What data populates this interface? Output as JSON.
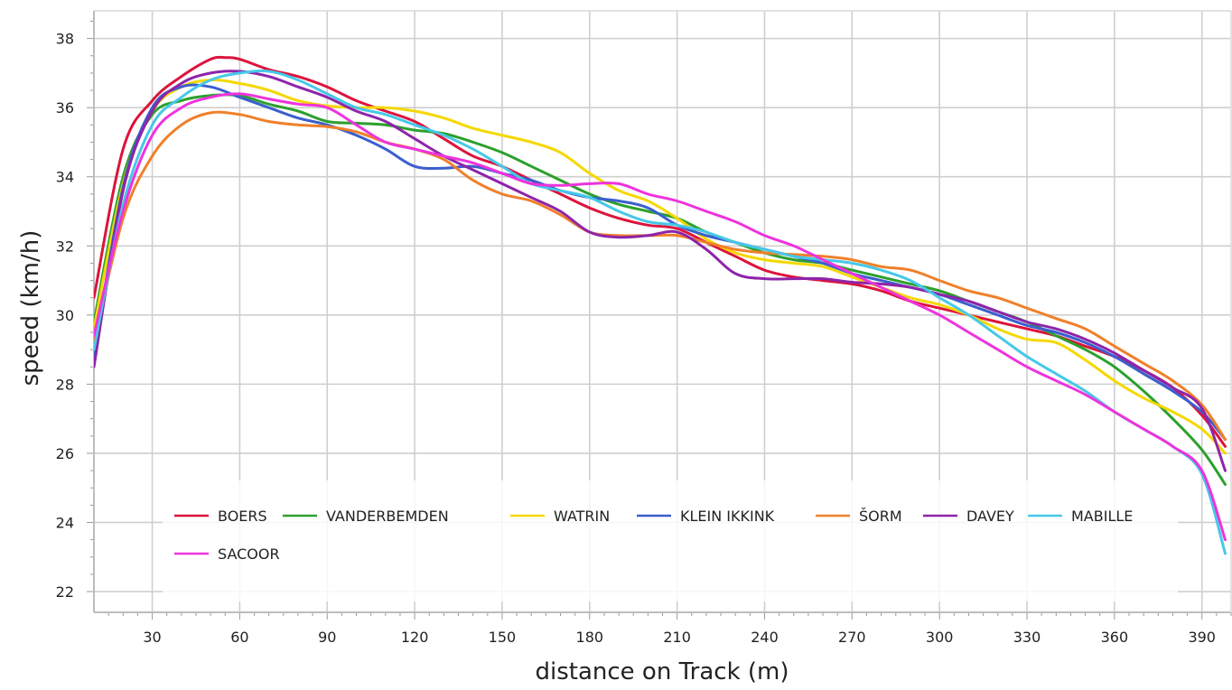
{
  "chart_data": {
    "type": "line",
    "title": "",
    "xlabel": "distance on Track (m)",
    "ylabel": "speed (km/h)",
    "xlim": [
      10,
      400
    ],
    "ylim": [
      21.4,
      38.8
    ],
    "x_ticks": [
      30,
      60,
      90,
      120,
      150,
      180,
      210,
      240,
      270,
      300,
      330,
      360,
      390
    ],
    "y_ticks": [
      22,
      24,
      26,
      28,
      30,
      32,
      34,
      36,
      38
    ],
    "grid": true,
    "legend_position": "bottom",
    "series": [
      {
        "name": "BOERS",
        "color": "#dc143c",
        "x": [
          10,
          20,
          30,
          40,
          50,
          55,
          60,
          70,
          80,
          90,
          100,
          110,
          120,
          130,
          140,
          150,
          160,
          170,
          180,
          190,
          200,
          210,
          220,
          230,
          240,
          250,
          260,
          270,
          280,
          290,
          300,
          310,
          320,
          330,
          340,
          350,
          360,
          370,
          380,
          390,
          398
        ],
        "values": [
          30.5,
          34.8,
          36.2,
          36.9,
          37.4,
          37.45,
          37.4,
          37.1,
          36.9,
          36.6,
          36.2,
          35.9,
          35.6,
          35.1,
          34.6,
          34.3,
          33.9,
          33.5,
          33.1,
          32.8,
          32.6,
          32.5,
          32.1,
          31.7,
          31.3,
          31.1,
          31.0,
          30.9,
          30.7,
          30.4,
          30.2,
          30.0,
          29.8,
          29.6,
          29.4,
          29.1,
          28.8,
          28.4,
          27.9,
          27.1,
          26.2
        ]
      },
      {
        "name": "VANDERBEMDEN",
        "color": "#2ca02c",
        "x": [
          10,
          20,
          30,
          40,
          50,
          60,
          70,
          80,
          90,
          100,
          110,
          120,
          130,
          140,
          150,
          160,
          170,
          180,
          190,
          200,
          210,
          220,
          230,
          240,
          250,
          260,
          270,
          280,
          290,
          300,
          310,
          320,
          330,
          340,
          350,
          360,
          370,
          380,
          390,
          398
        ],
        "values": [
          29.8,
          34.0,
          35.8,
          36.2,
          36.35,
          36.35,
          36.1,
          35.9,
          35.6,
          35.55,
          35.5,
          35.35,
          35.25,
          35.0,
          34.7,
          34.3,
          33.9,
          33.5,
          33.2,
          33.0,
          32.8,
          32.4,
          32.1,
          31.8,
          31.6,
          31.5,
          31.3,
          31.1,
          30.9,
          30.7,
          30.4,
          30.1,
          29.8,
          29.4,
          29.0,
          28.5,
          27.8,
          27.0,
          26.1,
          25.1
        ]
      },
      {
        "name": "WATRIN",
        "color": "#f5d800",
        "x": [
          10,
          20,
          30,
          40,
          50,
          60,
          70,
          80,
          90,
          100,
          110,
          120,
          130,
          140,
          150,
          160,
          170,
          180,
          190,
          200,
          210,
          220,
          230,
          240,
          250,
          260,
          270,
          280,
          290,
          300,
          310,
          320,
          330,
          340,
          350,
          360,
          370,
          380,
          390,
          398
        ],
        "values": [
          29.6,
          33.8,
          35.9,
          36.6,
          36.8,
          36.7,
          36.5,
          36.2,
          36.05,
          36.0,
          36.0,
          35.9,
          35.7,
          35.4,
          35.2,
          35.0,
          34.7,
          34.1,
          33.6,
          33.3,
          32.8,
          32.2,
          31.8,
          31.6,
          31.5,
          31.4,
          31.1,
          30.8,
          30.5,
          30.3,
          30.0,
          29.6,
          29.3,
          29.2,
          28.7,
          28.1,
          27.6,
          27.2,
          26.7,
          26.0
        ]
      },
      {
        "name": "KLEIN IKKINK",
        "color": "#3a5fcd",
        "x": [
          10,
          20,
          30,
          40,
          50,
          60,
          70,
          80,
          90,
          100,
          110,
          120,
          130,
          140,
          150,
          160,
          170,
          180,
          190,
          200,
          210,
          220,
          230,
          240,
          250,
          260,
          270,
          280,
          290,
          300,
          310,
          320,
          330,
          340,
          350,
          360,
          370,
          380,
          390,
          398
        ],
        "values": [
          28.8,
          33.7,
          36.0,
          36.6,
          36.6,
          36.3,
          36.0,
          35.7,
          35.5,
          35.2,
          34.8,
          34.3,
          34.25,
          34.3,
          34.1,
          33.9,
          33.6,
          33.4,
          33.3,
          33.1,
          32.6,
          32.3,
          32.1,
          31.9,
          31.7,
          31.5,
          31.2,
          31.0,
          30.8,
          30.6,
          30.3,
          30.0,
          29.7,
          29.5,
          29.2,
          28.8,
          28.3,
          27.8,
          27.2,
          26.4
        ]
      },
      {
        "name": "ŠORM",
        "color": "#f0802a",
        "x": [
          10,
          20,
          30,
          40,
          50,
          60,
          70,
          80,
          90,
          100,
          110,
          120,
          130,
          140,
          150,
          160,
          170,
          180,
          190,
          200,
          210,
          220,
          230,
          240,
          250,
          260,
          270,
          280,
          290,
          300,
          310,
          320,
          330,
          340,
          350,
          360,
          370,
          380,
          390,
          398
        ],
        "values": [
          29.2,
          32.8,
          34.6,
          35.5,
          35.85,
          35.8,
          35.6,
          35.5,
          35.45,
          35.3,
          35.0,
          34.8,
          34.5,
          33.9,
          33.5,
          33.3,
          32.9,
          32.4,
          32.3,
          32.3,
          32.3,
          32.1,
          31.9,
          31.8,
          31.75,
          31.7,
          31.6,
          31.4,
          31.3,
          31.0,
          30.7,
          30.5,
          30.2,
          29.9,
          29.6,
          29.1,
          28.6,
          28.1,
          27.4,
          26.4
        ]
      },
      {
        "name": "DAVEY",
        "color": "#8e24aa",
        "x": [
          10,
          20,
          30,
          40,
          50,
          60,
          70,
          80,
          90,
          100,
          110,
          120,
          130,
          140,
          150,
          160,
          170,
          180,
          190,
          200,
          210,
          220,
          230,
          240,
          250,
          260,
          270,
          280,
          290,
          300,
          310,
          320,
          330,
          340,
          350,
          360,
          370,
          380,
          390,
          398
        ],
        "values": [
          28.5,
          33.6,
          35.9,
          36.7,
          37.0,
          37.05,
          36.9,
          36.6,
          36.3,
          35.9,
          35.6,
          35.1,
          34.6,
          34.2,
          33.8,
          33.4,
          33.0,
          32.4,
          32.25,
          32.3,
          32.4,
          31.9,
          31.2,
          31.05,
          31.05,
          31.05,
          30.95,
          30.9,
          30.8,
          30.6,
          30.4,
          30.1,
          29.8,
          29.6,
          29.3,
          28.9,
          28.4,
          27.9,
          27.3,
          25.5
        ]
      },
      {
        "name": "MABILLE",
        "color": "#46c8e8",
        "x": [
          10,
          20,
          30,
          40,
          50,
          60,
          70,
          80,
          90,
          100,
          110,
          120,
          130,
          140,
          150,
          160,
          170,
          180,
          190,
          200,
          210,
          220,
          230,
          240,
          250,
          260,
          270,
          280,
          290,
          300,
          310,
          320,
          330,
          340,
          350,
          360,
          370,
          380,
          390,
          398
        ],
        "values": [
          29.0,
          33.2,
          35.5,
          36.3,
          36.8,
          37.0,
          37.05,
          36.8,
          36.4,
          36.0,
          35.8,
          35.5,
          35.2,
          34.8,
          34.3,
          33.8,
          33.6,
          33.4,
          33.0,
          32.7,
          32.6,
          32.4,
          32.1,
          31.9,
          31.7,
          31.6,
          31.5,
          31.3,
          31.0,
          30.5,
          30.0,
          29.4,
          28.8,
          28.3,
          27.8,
          27.2,
          26.7,
          26.2,
          25.4,
          23.1
        ]
      },
      {
        "name": "SACOOR",
        "color": "#ee33dd",
        "x": [
          10,
          20,
          30,
          40,
          50,
          60,
          70,
          80,
          90,
          100,
          110,
          120,
          130,
          140,
          150,
          160,
          170,
          180,
          190,
          200,
          210,
          220,
          230,
          240,
          250,
          260,
          270,
          280,
          290,
          300,
          310,
          320,
          330,
          340,
          350,
          360,
          370,
          380,
          390,
          398
        ],
        "values": [
          29.4,
          33.0,
          35.2,
          36.0,
          36.3,
          36.4,
          36.25,
          36.1,
          36.0,
          35.5,
          35.0,
          34.8,
          34.6,
          34.4,
          34.1,
          33.8,
          33.75,
          33.8,
          33.8,
          33.5,
          33.3,
          33.0,
          32.7,
          32.3,
          32.0,
          31.6,
          31.2,
          30.8,
          30.4,
          30.0,
          29.5,
          29.0,
          28.5,
          28.1,
          27.7,
          27.2,
          26.7,
          26.2,
          25.5,
          23.5
        ]
      }
    ]
  }
}
